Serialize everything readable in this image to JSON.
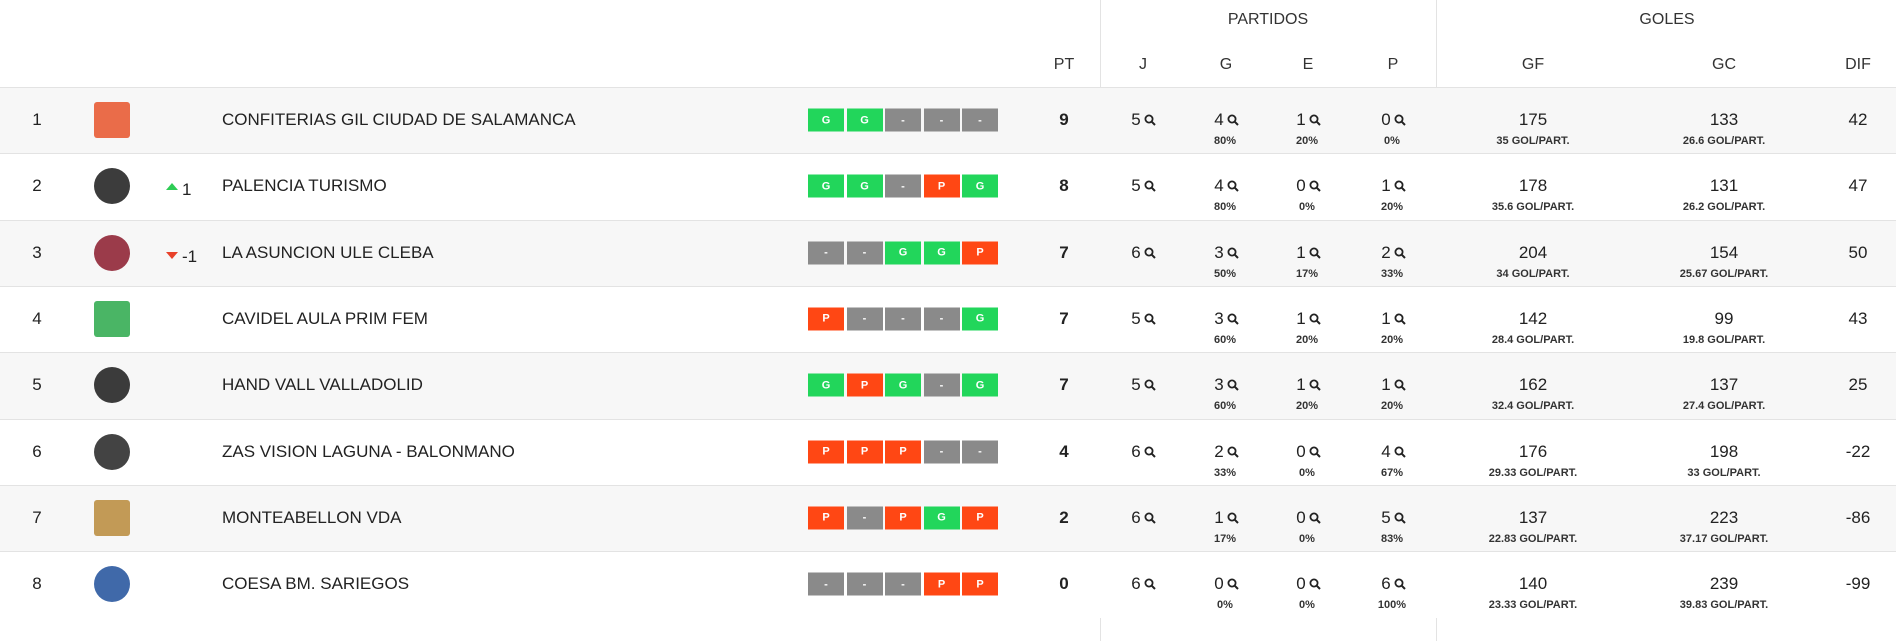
{
  "header": {
    "groups": [
      "PARTIDOS",
      "GOLES"
    ],
    "columns": [
      "PT",
      "J",
      "G",
      "E",
      "P",
      "GF",
      "GC",
      "DIF"
    ]
  },
  "form_colors": {
    "G": "#22d65b",
    "P": "#ff4714",
    "-": "#8a8a8a"
  },
  "rows": [
    {
      "pos": "1",
      "team": "CONFITERIAS GIL CIUDAD DE SALAMANCA",
      "form": [
        "G",
        "G",
        "-",
        "-",
        "-"
      ],
      "pt": "9",
      "j": "5",
      "g": "4",
      "g_pct": "80%",
      "e": "1",
      "e_pct": "20%",
      "p": "0",
      "p_pct": "0%",
      "gf": "175",
      "gf_avg": "35 GOL/PART.",
      "gc": "133",
      "gc_avg": "26.6 GOL/PART.",
      "dif": "42"
    },
    {
      "pos": "2",
      "change": "1",
      "team": "PALENCIA TURISMO",
      "form": [
        "G",
        "G",
        "-",
        "P",
        "G"
      ],
      "pt": "8",
      "j": "5",
      "g": "4",
      "g_pct": "80%",
      "e": "0",
      "e_pct": "0%",
      "p": "1",
      "p_pct": "20%",
      "gf": "178",
      "gf_avg": "35.6 GOL/PART.",
      "gc": "131",
      "gc_avg": "26.2 GOL/PART.",
      "dif": "47"
    },
    {
      "pos": "3",
      "change": "-1",
      "team": "LA ASUNCION ULE CLEBA",
      "form": [
        "-",
        "-",
        "G",
        "G",
        "P"
      ],
      "pt": "7",
      "j": "6",
      "g": "3",
      "g_pct": "50%",
      "e": "1",
      "e_pct": "17%",
      "p": "2",
      "p_pct": "33%",
      "gf": "204",
      "gf_avg": "34 GOL/PART.",
      "gc": "154",
      "gc_avg": "25.67 GOL/PART.",
      "dif": "50"
    },
    {
      "pos": "4",
      "team": "CAVIDEL AULA PRIM FEM",
      "form": [
        "P",
        "-",
        "-",
        "-",
        "G"
      ],
      "pt": "7",
      "j": "5",
      "g": "3",
      "g_pct": "60%",
      "e": "1",
      "e_pct": "20%",
      "p": "1",
      "p_pct": "20%",
      "gf": "142",
      "gf_avg": "28.4 GOL/PART.",
      "gc": "99",
      "gc_avg": "19.8 GOL/PART.",
      "dif": "43"
    },
    {
      "pos": "5",
      "team": "HAND VALL VALLADOLID",
      "form": [
        "G",
        "P",
        "G",
        "-",
        "G"
      ],
      "pt": "7",
      "j": "5",
      "g": "3",
      "g_pct": "60%",
      "e": "1",
      "e_pct": "20%",
      "p": "1",
      "p_pct": "20%",
      "gf": "162",
      "gf_avg": "32.4 GOL/PART.",
      "gc": "137",
      "gc_avg": "27.4 GOL/PART.",
      "dif": "25"
    },
    {
      "pos": "6",
      "team": "ZAS VISION LAGUNA - BALONMANO",
      "form": [
        "P",
        "P",
        "P",
        "-",
        "-"
      ],
      "pt": "4",
      "j": "6",
      "g": "2",
      "g_pct": "33%",
      "e": "0",
      "e_pct": "0%",
      "p": "4",
      "p_pct": "67%",
      "gf": "176",
      "gf_avg": "29.33 GOL/PART.",
      "gc": "198",
      "gc_avg": "33 GOL/PART.",
      "dif": "-22"
    },
    {
      "pos": "7",
      "team": "MONTEABELLON VDA",
      "form": [
        "P",
        "-",
        "P",
        "G",
        "P"
      ],
      "pt": "2",
      "j": "6",
      "g": "1",
      "g_pct": "17%",
      "e": "0",
      "e_pct": "0%",
      "p": "5",
      "p_pct": "83%",
      "gf": "137",
      "gf_avg": "22.83 GOL/PART.",
      "gc": "223",
      "gc_avg": "37.17 GOL/PART.",
      "dif": "-86"
    },
    {
      "pos": "8",
      "team": "COESA BM. SARIEGOS",
      "form": [
        "-",
        "-",
        "-",
        "P",
        "P"
      ],
      "pt": "0",
      "j": "6",
      "g": "0",
      "g_pct": "0%",
      "e": "0",
      "e_pct": "0%",
      "p": "6",
      "p_pct": "100%",
      "gf": "140",
      "gf_avg": "23.33 GOL/PART.",
      "gc": "239",
      "gc_avg": "39.83 GOL/PART.",
      "dif": "-99"
    }
  ]
}
